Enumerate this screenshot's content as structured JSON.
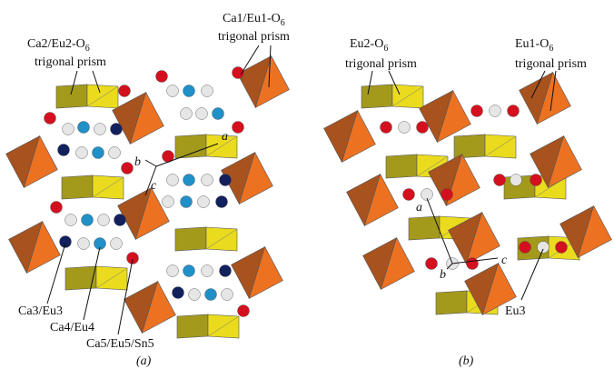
{
  "panel_a": {
    "prism_left": {
      "line1": {
        "text": "Ca2/Eu2-O",
        "sub": "6"
      },
      "line2": "trigonal prism"
    },
    "prism_right": {
      "line1": {
        "text": "Ca1/Eu1-O",
        "sub": "6"
      },
      "line2": "trigonal prism"
    },
    "site_labels": [
      "Ca3/Eu3",
      "Ca4/Eu4",
      "Ca5/Eu5/Sn5"
    ],
    "axes": [
      "a",
      "b",
      "c"
    ],
    "caption": "(a)"
  },
  "panel_b": {
    "prism_left": {
      "line1": {
        "text": "Eu2-O",
        "sub": "6"
      },
      "line2": "trigonal prism"
    },
    "prism_right": {
      "line1": {
        "text": "Eu1-O",
        "sub": "6"
      },
      "line2": "trigonal prism"
    },
    "site_labels": [
      "Eu3"
    ],
    "axes": [
      "a",
      "b",
      "c"
    ],
    "caption": "(b)"
  }
}
